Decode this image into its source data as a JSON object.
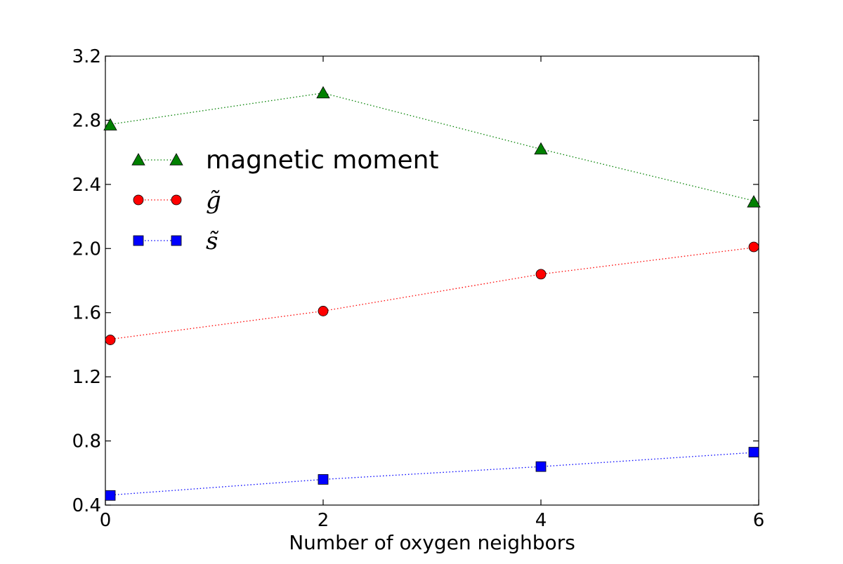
{
  "chart_data": {
    "type": "line",
    "title": "",
    "xlabel": "Number of oxygen neighbors",
    "ylabel": "",
    "xlim": [
      0,
      6
    ],
    "ylim": [
      0.4,
      3.2
    ],
    "x": [
      0,
      2,
      4,
      6
    ],
    "xticks": [
      "0",
      "2",
      "4",
      "6"
    ],
    "yticks": [
      "0.4",
      "0.8",
      "1.2",
      "1.6",
      "2.0",
      "2.4",
      "2.8",
      "3.2"
    ],
    "grid": false,
    "legend_position": "upper-left",
    "series": [
      {
        "name": "magnetic moment",
        "marker": "triangle",
        "line_style": "dotted",
        "color": "#008000",
        "values": [
          2.77,
          2.97,
          2.62,
          2.29
        ]
      },
      {
        "name": "g̃",
        "marker": "circle",
        "line_style": "dotted",
        "color": "#ff0000",
        "values": [
          1.43,
          1.61,
          1.84,
          2.01
        ]
      },
      {
        "name": "s̃",
        "marker": "square",
        "line_style": "dotted",
        "color": "#0000ff",
        "values": [
          0.46,
          0.56,
          0.64,
          0.73
        ]
      }
    ]
  }
}
